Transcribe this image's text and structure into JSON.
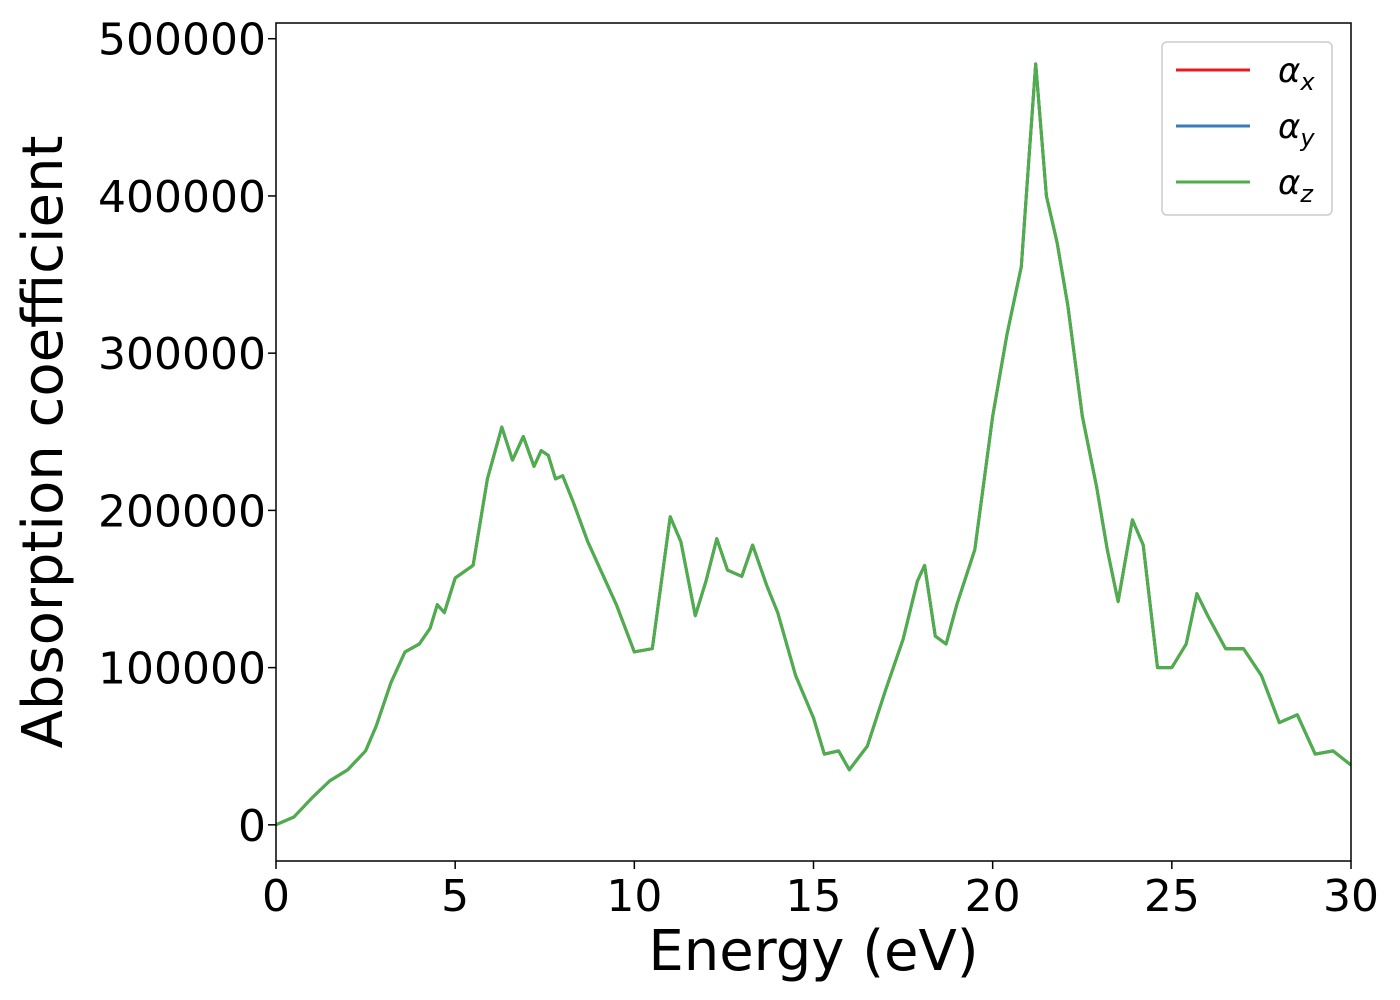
{
  "chart_data": {
    "type": "line",
    "xlabel": "Energy (eV)",
    "ylabel": "Absorption coefficient",
    "xlim": [
      0,
      30
    ],
    "ylim": [
      -23000,
      510000
    ],
    "xticks": [
      0,
      5,
      10,
      15,
      20,
      25,
      30
    ],
    "xtick_labels": [
      "0",
      "5",
      "10",
      "15",
      "20",
      "25",
      "30"
    ],
    "yticks": [
      0,
      100000,
      200000,
      300000,
      400000,
      500000
    ],
    "ytick_labels": [
      "0",
      "100000",
      "200000",
      "300000",
      "400000",
      "500000"
    ],
    "grid": false,
    "legend_position": "top-right",
    "series": [
      {
        "name": "αx",
        "symbol": "α",
        "subscript": "x",
        "color": "#e41a1c",
        "x": [
          0,
          0.5,
          1.0,
          1.5,
          2.0,
          2.5,
          2.8,
          3.2,
          3.6,
          4.0,
          4.3,
          4.5,
          4.7,
          5.0,
          5.5,
          5.9,
          6.3,
          6.6,
          6.9,
          7.2,
          7.4,
          7.6,
          7.8,
          8.0,
          8.3,
          8.7,
          9.0,
          9.5,
          10.0,
          10.5,
          11.0,
          11.3,
          11.7,
          12.0,
          12.3,
          12.6,
          13.0,
          13.3,
          13.7,
          14.0,
          14.5,
          15.0,
          15.3,
          15.7,
          16.0,
          16.5,
          17.0,
          17.5,
          17.9,
          18.1,
          18.4,
          18.7,
          19.0,
          19.5,
          20.0,
          20.4,
          20.8,
          21.0,
          21.2,
          21.5,
          21.8,
          22.1,
          22.5,
          22.9,
          23.2,
          23.5,
          23.9,
          24.2,
          24.6,
          25.0,
          25.4,
          25.7,
          26.0,
          26.5,
          27.0,
          27.5,
          28.0,
          28.5,
          29.0,
          29.5,
          30.0
        ],
        "values": [
          0,
          5000,
          17000,
          28000,
          35000,
          47000,
          63000,
          90000,
          110000,
          115000,
          125000,
          140000,
          135000,
          157000,
          165000,
          220000,
          253000,
          232000,
          247000,
          228000,
          238000,
          235000,
          220000,
          222000,
          205000,
          180000,
          165000,
          140000,
          110000,
          112000,
          196000,
          180000,
          133000,
          155000,
          182000,
          162000,
          158000,
          178000,
          152000,
          135000,
          95000,
          68000,
          45000,
          47000,
          35000,
          50000,
          85000,
          118000,
          155000,
          165000,
          120000,
          115000,
          140000,
          175000,
          260000,
          312000,
          355000,
          420000,
          484000,
          400000,
          370000,
          330000,
          260000,
          215000,
          175000,
          142000,
          194000,
          178000,
          100000,
          100000,
          115000,
          147000,
          133000,
          112000,
          112000,
          95000,
          65000,
          70000,
          45000,
          47000,
          38000
        ]
      },
      {
        "name": "αy",
        "symbol": "α",
        "subscript": "y",
        "color": "#377eb8",
        "x": [
          0,
          0.5,
          1.0,
          1.5,
          2.0,
          2.5,
          2.8,
          3.2,
          3.6,
          4.0,
          4.3,
          4.5,
          4.7,
          5.0,
          5.5,
          5.9,
          6.3,
          6.6,
          6.9,
          7.2,
          7.4,
          7.6,
          7.8,
          8.0,
          8.3,
          8.7,
          9.0,
          9.5,
          10.0,
          10.5,
          11.0,
          11.3,
          11.7,
          12.0,
          12.3,
          12.6,
          13.0,
          13.3,
          13.7,
          14.0,
          14.5,
          15.0,
          15.3,
          15.7,
          16.0,
          16.5,
          17.0,
          17.5,
          17.9,
          18.1,
          18.4,
          18.7,
          19.0,
          19.5,
          20.0,
          20.4,
          20.8,
          21.0,
          21.2,
          21.5,
          21.8,
          22.1,
          22.5,
          22.9,
          23.2,
          23.5,
          23.9,
          24.2,
          24.6,
          25.0,
          25.4,
          25.7,
          26.0,
          26.5,
          27.0,
          27.5,
          28.0,
          28.5,
          29.0,
          29.5,
          30.0
        ],
        "values": [
          0,
          5000,
          17000,
          28000,
          35000,
          47000,
          63000,
          90000,
          110000,
          115000,
          125000,
          140000,
          135000,
          157000,
          165000,
          220000,
          253000,
          232000,
          247000,
          228000,
          238000,
          235000,
          220000,
          222000,
          205000,
          180000,
          165000,
          140000,
          110000,
          112000,
          196000,
          180000,
          133000,
          155000,
          182000,
          162000,
          158000,
          178000,
          152000,
          135000,
          95000,
          68000,
          45000,
          47000,
          35000,
          50000,
          85000,
          118000,
          155000,
          165000,
          120000,
          115000,
          140000,
          175000,
          260000,
          312000,
          355000,
          420000,
          484000,
          400000,
          370000,
          330000,
          260000,
          215000,
          175000,
          142000,
          194000,
          178000,
          100000,
          100000,
          115000,
          147000,
          133000,
          112000,
          112000,
          95000,
          65000,
          70000,
          45000,
          47000,
          38000
        ]
      },
      {
        "name": "αz",
        "symbol": "α",
        "subscript": "z",
        "color": "#4daf4a",
        "x": [
          0,
          0.5,
          1.0,
          1.5,
          2.0,
          2.5,
          2.8,
          3.2,
          3.6,
          4.0,
          4.3,
          4.5,
          4.7,
          5.0,
          5.5,
          5.9,
          6.3,
          6.6,
          6.9,
          7.2,
          7.4,
          7.6,
          7.8,
          8.0,
          8.3,
          8.7,
          9.0,
          9.5,
          10.0,
          10.5,
          11.0,
          11.3,
          11.7,
          12.0,
          12.3,
          12.6,
          13.0,
          13.3,
          13.7,
          14.0,
          14.5,
          15.0,
          15.3,
          15.7,
          16.0,
          16.5,
          17.0,
          17.5,
          17.9,
          18.1,
          18.4,
          18.7,
          19.0,
          19.5,
          20.0,
          20.4,
          20.8,
          21.0,
          21.2,
          21.5,
          21.8,
          22.1,
          22.5,
          22.9,
          23.2,
          23.5,
          23.9,
          24.2,
          24.6,
          25.0,
          25.4,
          25.7,
          26.0,
          26.5,
          27.0,
          27.5,
          28.0,
          28.5,
          29.0,
          29.5,
          30.0
        ],
        "values": [
          0,
          5000,
          17000,
          28000,
          35000,
          47000,
          63000,
          90000,
          110000,
          115000,
          125000,
          140000,
          135000,
          157000,
          165000,
          220000,
          253000,
          232000,
          247000,
          228000,
          238000,
          235000,
          220000,
          222000,
          205000,
          180000,
          165000,
          140000,
          110000,
          112000,
          196000,
          180000,
          133000,
          155000,
          182000,
          162000,
          158000,
          178000,
          152000,
          135000,
          95000,
          68000,
          45000,
          47000,
          35000,
          50000,
          85000,
          118000,
          155000,
          165000,
          120000,
          115000,
          140000,
          175000,
          260000,
          312000,
          355000,
          420000,
          484000,
          400000,
          370000,
          330000,
          260000,
          215000,
          175000,
          142000,
          194000,
          178000,
          100000,
          100000,
          115000,
          147000,
          133000,
          112000,
          112000,
          95000,
          65000,
          70000,
          45000,
          47000,
          38000
        ]
      }
    ]
  }
}
